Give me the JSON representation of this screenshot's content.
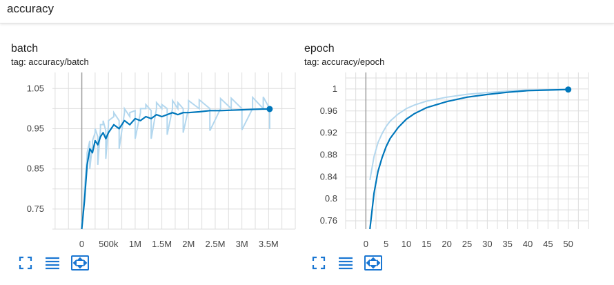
{
  "page": {
    "section_title": "accuracy"
  },
  "charts": [
    {
      "title": "batch",
      "tag": "tag: accuracy/batch"
    },
    {
      "title": "epoch",
      "tag": "tag: accuracy/epoch"
    }
  ],
  "toolbar": {
    "icons": [
      "fullscreen-icon",
      "toggle-log-scale-icon",
      "fit-domain-icon"
    ]
  },
  "colors": {
    "line": "#0077bb",
    "raw_line": "#b3d7ee",
    "grid": "#dddddd",
    "axis": "#9e9e9e"
  },
  "chart_data": [
    {
      "type": "line",
      "title": "batch",
      "xlabel": "",
      "ylabel": "",
      "x_ticks": [
        "0",
        "500k",
        "1M",
        "1.5M",
        "2M",
        "2.5M",
        "3M",
        "3.5M"
      ],
      "y_ticks": [
        "0.75",
        "0.85",
        "0.95",
        "1.05"
      ],
      "xlim": [
        -550000,
        4000000
      ],
      "ylim": [
        0.7,
        1.09
      ],
      "grid": true,
      "series": [
        {
          "x": [
            0,
            50000,
            100000,
            150000,
            200000,
            250000,
            300000,
            350000,
            400000,
            450000,
            500000,
            600000,
            700000,
            800000,
            900000,
            1000000,
            1100000,
            1200000,
            1300000,
            1400000,
            1500000,
            1600000,
            1700000,
            1800000,
            1900000,
            2000000,
            2200000,
            2400000,
            2600000,
            2800000,
            3000000,
            3200000,
            3400000,
            3520000
          ],
          "y": [
            0.7,
            0.77,
            0.86,
            0.9,
            0.89,
            0.92,
            0.91,
            0.93,
            0.94,
            0.925,
            0.94,
            0.96,
            0.95,
            0.97,
            0.96,
            0.975,
            0.97,
            0.98,
            0.975,
            0.985,
            0.98,
            0.985,
            0.99,
            0.985,
            0.99,
            0.99,
            0.992,
            0.995,
            0.995,
            0.996,
            0.997,
            0.998,
            0.999,
            0.999
          ]
        }
      ]
    },
    {
      "type": "line",
      "title": "epoch",
      "xlabel": "",
      "ylabel": "",
      "x_ticks": [
        "0",
        "5",
        "10",
        "15",
        "20",
        "25",
        "30",
        "35",
        "40",
        "45",
        "50"
      ],
      "y_ticks": [
        "0.76",
        "0.8",
        "0.84",
        "0.88",
        "0.92",
        "0.96",
        "1"
      ],
      "xlim": [
        -5,
        55
      ],
      "ylim": [
        0.745,
        1.03
      ],
      "grid": true,
      "series": [
        {
          "x": [
            1,
            2,
            3,
            4,
            5,
            6,
            8,
            10,
            12,
            15,
            20,
            25,
            30,
            35,
            40,
            45,
            50
          ],
          "y": [
            0.745,
            0.81,
            0.85,
            0.875,
            0.895,
            0.91,
            0.93,
            0.945,
            0.955,
            0.966,
            0.977,
            0.985,
            0.99,
            0.994,
            0.997,
            0.998,
            0.999
          ]
        }
      ]
    }
  ]
}
